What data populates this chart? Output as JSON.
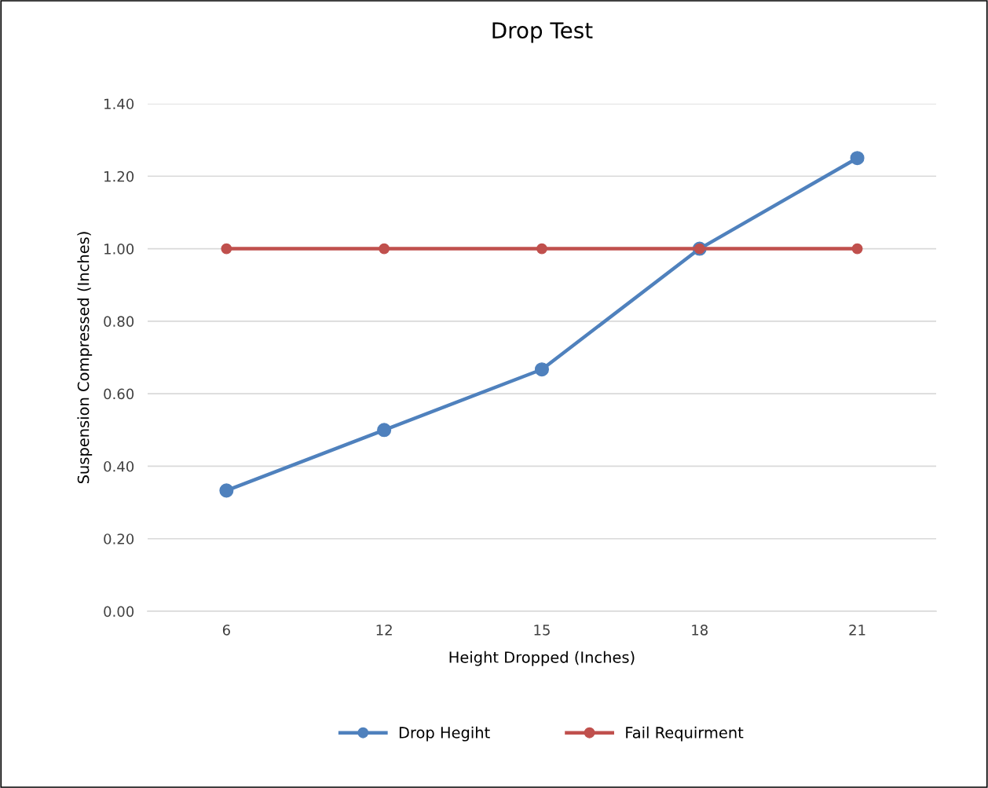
{
  "chart_data": {
    "type": "line",
    "title": "Drop Test",
    "xlabel": "Height Dropped (Inches)",
    "ylabel": "Suspension Compressed (Inches)",
    "categories": [
      "6",
      "12",
      "15",
      "18",
      "21"
    ],
    "series": [
      {
        "name": "Drop Hegiht",
        "color": "#4f81bd",
        "values": [
          0.333,
          0.5,
          0.667,
          1.0,
          1.25
        ]
      },
      {
        "name": "Fail Requirment",
        "color": "#c0504d",
        "values": [
          1.0,
          1.0,
          1.0,
          1.0,
          1.0
        ]
      }
    ],
    "ylim": [
      0,
      1.4
    ],
    "yticks": [
      {
        "value": 0,
        "label": "0.00"
      },
      {
        "value": 0.2,
        "label": "0.20"
      },
      {
        "value": 0.4,
        "label": "0.40"
      },
      {
        "value": 0.6,
        "label": "0.60"
      },
      {
        "value": 0.8,
        "label": "0.80"
      },
      {
        "value": 1.0,
        "label": "1.00"
      },
      {
        "value": 1.2,
        "label": "1.20"
      },
      {
        "value": 1.4,
        "label": "1.40"
      }
    ],
    "grid": "y",
    "legend": "bottom",
    "marker": "circle",
    "line_style": "solid"
  }
}
